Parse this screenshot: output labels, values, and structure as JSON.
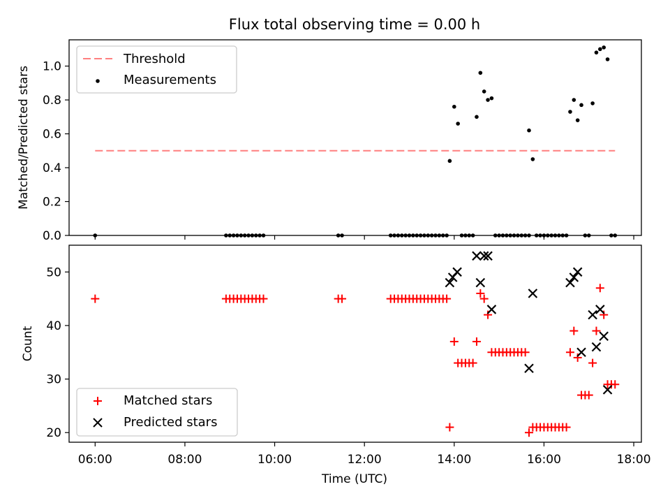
{
  "chart_data": [
    {
      "type": "scatter",
      "title": "Flux total observing time = 0.00 h",
      "ylabel": "Matched/Predicted stars",
      "xlim_hours": [
        5.42,
        18.17
      ],
      "ylim": [
        0,
        1.155
      ],
      "yticks": [
        "0.0",
        "0.2",
        "0.4",
        "0.6",
        "0.8",
        "1.0"
      ],
      "legend_position": "upper-left",
      "threshold": {
        "name": "Threshold",
        "color": "#ff7f7f",
        "x_range": [
          "06:00",
          "17:35"
        ],
        "y": 0.5
      },
      "series": [
        {
          "name": "Measurements",
          "color": "#000000",
          "points": [
            [
              "06:00",
              0
            ],
            [
              "08:55",
              0
            ],
            [
              "09:00",
              0
            ],
            [
              "09:05",
              0
            ],
            [
              "09:10",
              0
            ],
            [
              "09:15",
              0
            ],
            [
              "09:20",
              0
            ],
            [
              "09:25",
              0
            ],
            [
              "09:30",
              0
            ],
            [
              "09:35",
              0
            ],
            [
              "09:40",
              0
            ],
            [
              "09:45",
              0
            ],
            [
              "11:25",
              0
            ],
            [
              "11:30",
              0
            ],
            [
              "12:35",
              0
            ],
            [
              "12:40",
              0
            ],
            [
              "12:45",
              0
            ],
            [
              "12:50",
              0
            ],
            [
              "12:55",
              0
            ],
            [
              "13:00",
              0
            ],
            [
              "13:05",
              0
            ],
            [
              "13:10",
              0
            ],
            [
              "13:15",
              0
            ],
            [
              "13:20",
              0
            ],
            [
              "13:25",
              0
            ],
            [
              "13:30",
              0
            ],
            [
              "13:35",
              0
            ],
            [
              "13:40",
              0
            ],
            [
              "13:45",
              0
            ],
            [
              "13:50",
              0
            ],
            [
              "13:54",
              0.44
            ],
            [
              "14:00",
              0.76
            ],
            [
              "14:05",
              0.66
            ],
            [
              "14:10",
              0
            ],
            [
              "14:15",
              0
            ],
            [
              "14:20",
              0
            ],
            [
              "14:25",
              0
            ],
            [
              "14:30",
              0.7
            ],
            [
              "14:35",
              0.96
            ],
            [
              "14:40",
              0.85
            ],
            [
              "14:45",
              0.8
            ],
            [
              "14:50",
              0.81
            ],
            [
              "14:55",
              0
            ],
            [
              "15:00",
              0
            ],
            [
              "15:05",
              0
            ],
            [
              "15:10",
              0
            ],
            [
              "15:15",
              0
            ],
            [
              "15:20",
              0
            ],
            [
              "15:25",
              0
            ],
            [
              "15:30",
              0
            ],
            [
              "15:35",
              0
            ],
            [
              "15:40",
              0
            ],
            [
              "15:40",
              0.62
            ],
            [
              "15:45",
              0.45
            ],
            [
              "15:50",
              0
            ],
            [
              "15:55",
              0
            ],
            [
              "16:00",
              0
            ],
            [
              "16:05",
              0
            ],
            [
              "16:10",
              0
            ],
            [
              "16:15",
              0
            ],
            [
              "16:20",
              0
            ],
            [
              "16:25",
              0
            ],
            [
              "16:30",
              0
            ],
            [
              "16:35",
              0.73
            ],
            [
              "16:40",
              0.8
            ],
            [
              "16:45",
              0.68
            ],
            [
              "16:50",
              0.77
            ],
            [
              "16:55",
              0
            ],
            [
              "17:00",
              0
            ],
            [
              "17:05",
              0.78
            ],
            [
              "17:10",
              1.08
            ],
            [
              "17:15",
              1.1
            ],
            [
              "17:20",
              1.11
            ],
            [
              "17:25",
              1.04
            ],
            [
              "17:30",
              0
            ],
            [
              "17:35",
              0
            ]
          ]
        }
      ]
    },
    {
      "type": "scatter",
      "xlabel": "Time (UTC)",
      "ylabel": "Count",
      "xlim_hours": [
        5.42,
        18.17
      ],
      "ylim": [
        18.2,
        55
      ],
      "xticks": [
        "06:00",
        "08:00",
        "10:00",
        "12:00",
        "14:00",
        "16:00",
        "18:00"
      ],
      "yticks": [
        "20",
        "30",
        "40",
        "50"
      ],
      "legend_position": "lower-left",
      "series": [
        {
          "name": "Matched stars",
          "marker": "+",
          "color": "#ff0000",
          "points": [
            [
              "06:00",
              45
            ],
            [
              "08:55",
              45
            ],
            [
              "09:00",
              45
            ],
            [
              "09:05",
              45
            ],
            [
              "09:10",
              45
            ],
            [
              "09:15",
              45
            ],
            [
              "09:20",
              45
            ],
            [
              "09:25",
              45
            ],
            [
              "09:30",
              45
            ],
            [
              "09:35",
              45
            ],
            [
              "09:40",
              45
            ],
            [
              "09:45",
              45
            ],
            [
              "11:25",
              45
            ],
            [
              "11:30",
              45
            ],
            [
              "12:35",
              45
            ],
            [
              "12:40",
              45
            ],
            [
              "12:45",
              45
            ],
            [
              "12:50",
              45
            ],
            [
              "12:55",
              45
            ],
            [
              "13:00",
              45
            ],
            [
              "13:05",
              45
            ],
            [
              "13:10",
              45
            ],
            [
              "13:15",
              45
            ],
            [
              "13:20",
              45
            ],
            [
              "13:25",
              45
            ],
            [
              "13:30",
              45
            ],
            [
              "13:35",
              45
            ],
            [
              "13:40",
              45
            ],
            [
              "13:45",
              45
            ],
            [
              "13:50",
              45
            ],
            [
              "13:54",
              21
            ],
            [
              "14:00",
              37
            ],
            [
              "14:05",
              33
            ],
            [
              "14:10",
              33
            ],
            [
              "14:15",
              33
            ],
            [
              "14:20",
              33
            ],
            [
              "14:25",
              33
            ],
            [
              "14:30",
              37
            ],
            [
              "14:35",
              46
            ],
            [
              "14:40",
              45
            ],
            [
              "14:45",
              42
            ],
            [
              "14:50",
              35
            ],
            [
              "14:55",
              35
            ],
            [
              "15:00",
              35
            ],
            [
              "15:05",
              35
            ],
            [
              "15:10",
              35
            ],
            [
              "15:15",
              35
            ],
            [
              "15:20",
              35
            ],
            [
              "15:25",
              35
            ],
            [
              "15:30",
              35
            ],
            [
              "15:35",
              35
            ],
            [
              "15:40",
              20
            ],
            [
              "15:45",
              21
            ],
            [
              "15:50",
              21
            ],
            [
              "15:55",
              21
            ],
            [
              "16:00",
              21
            ],
            [
              "16:05",
              21
            ],
            [
              "16:10",
              21
            ],
            [
              "16:15",
              21
            ],
            [
              "16:20",
              21
            ],
            [
              "16:25",
              21
            ],
            [
              "16:30",
              21
            ],
            [
              "16:35",
              35
            ],
            [
              "16:40",
              39
            ],
            [
              "16:45",
              34
            ],
            [
              "16:50",
              27
            ],
            [
              "16:55",
              27
            ],
            [
              "17:00",
              27
            ],
            [
              "17:05",
              33
            ],
            [
              "17:10",
              39
            ],
            [
              "17:15",
              47
            ],
            [
              "17:20",
              42
            ],
            [
              "17:25",
              29
            ],
            [
              "17:30",
              29
            ],
            [
              "17:35",
              29
            ]
          ]
        },
        {
          "name": "Predicted stars",
          "marker": "x",
          "color": "#000000",
          "points": [
            [
              "13:54",
              48
            ],
            [
              "13:58",
              49
            ],
            [
              "14:04",
              50
            ],
            [
              "14:30",
              53
            ],
            [
              "14:35",
              48
            ],
            [
              "14:40",
              53
            ],
            [
              "14:45",
              53
            ],
            [
              "14:50",
              43
            ],
            [
              "15:40",
              32
            ],
            [
              "15:45",
              46
            ],
            [
              "16:35",
              48
            ],
            [
              "16:40",
              49
            ],
            [
              "16:45",
              50
            ],
            [
              "16:50",
              35
            ],
            [
              "17:05",
              42
            ],
            [
              "17:10",
              36
            ],
            [
              "17:15",
              43
            ],
            [
              "17:20",
              38
            ],
            [
              "17:25",
              28
            ]
          ]
        }
      ]
    }
  ]
}
